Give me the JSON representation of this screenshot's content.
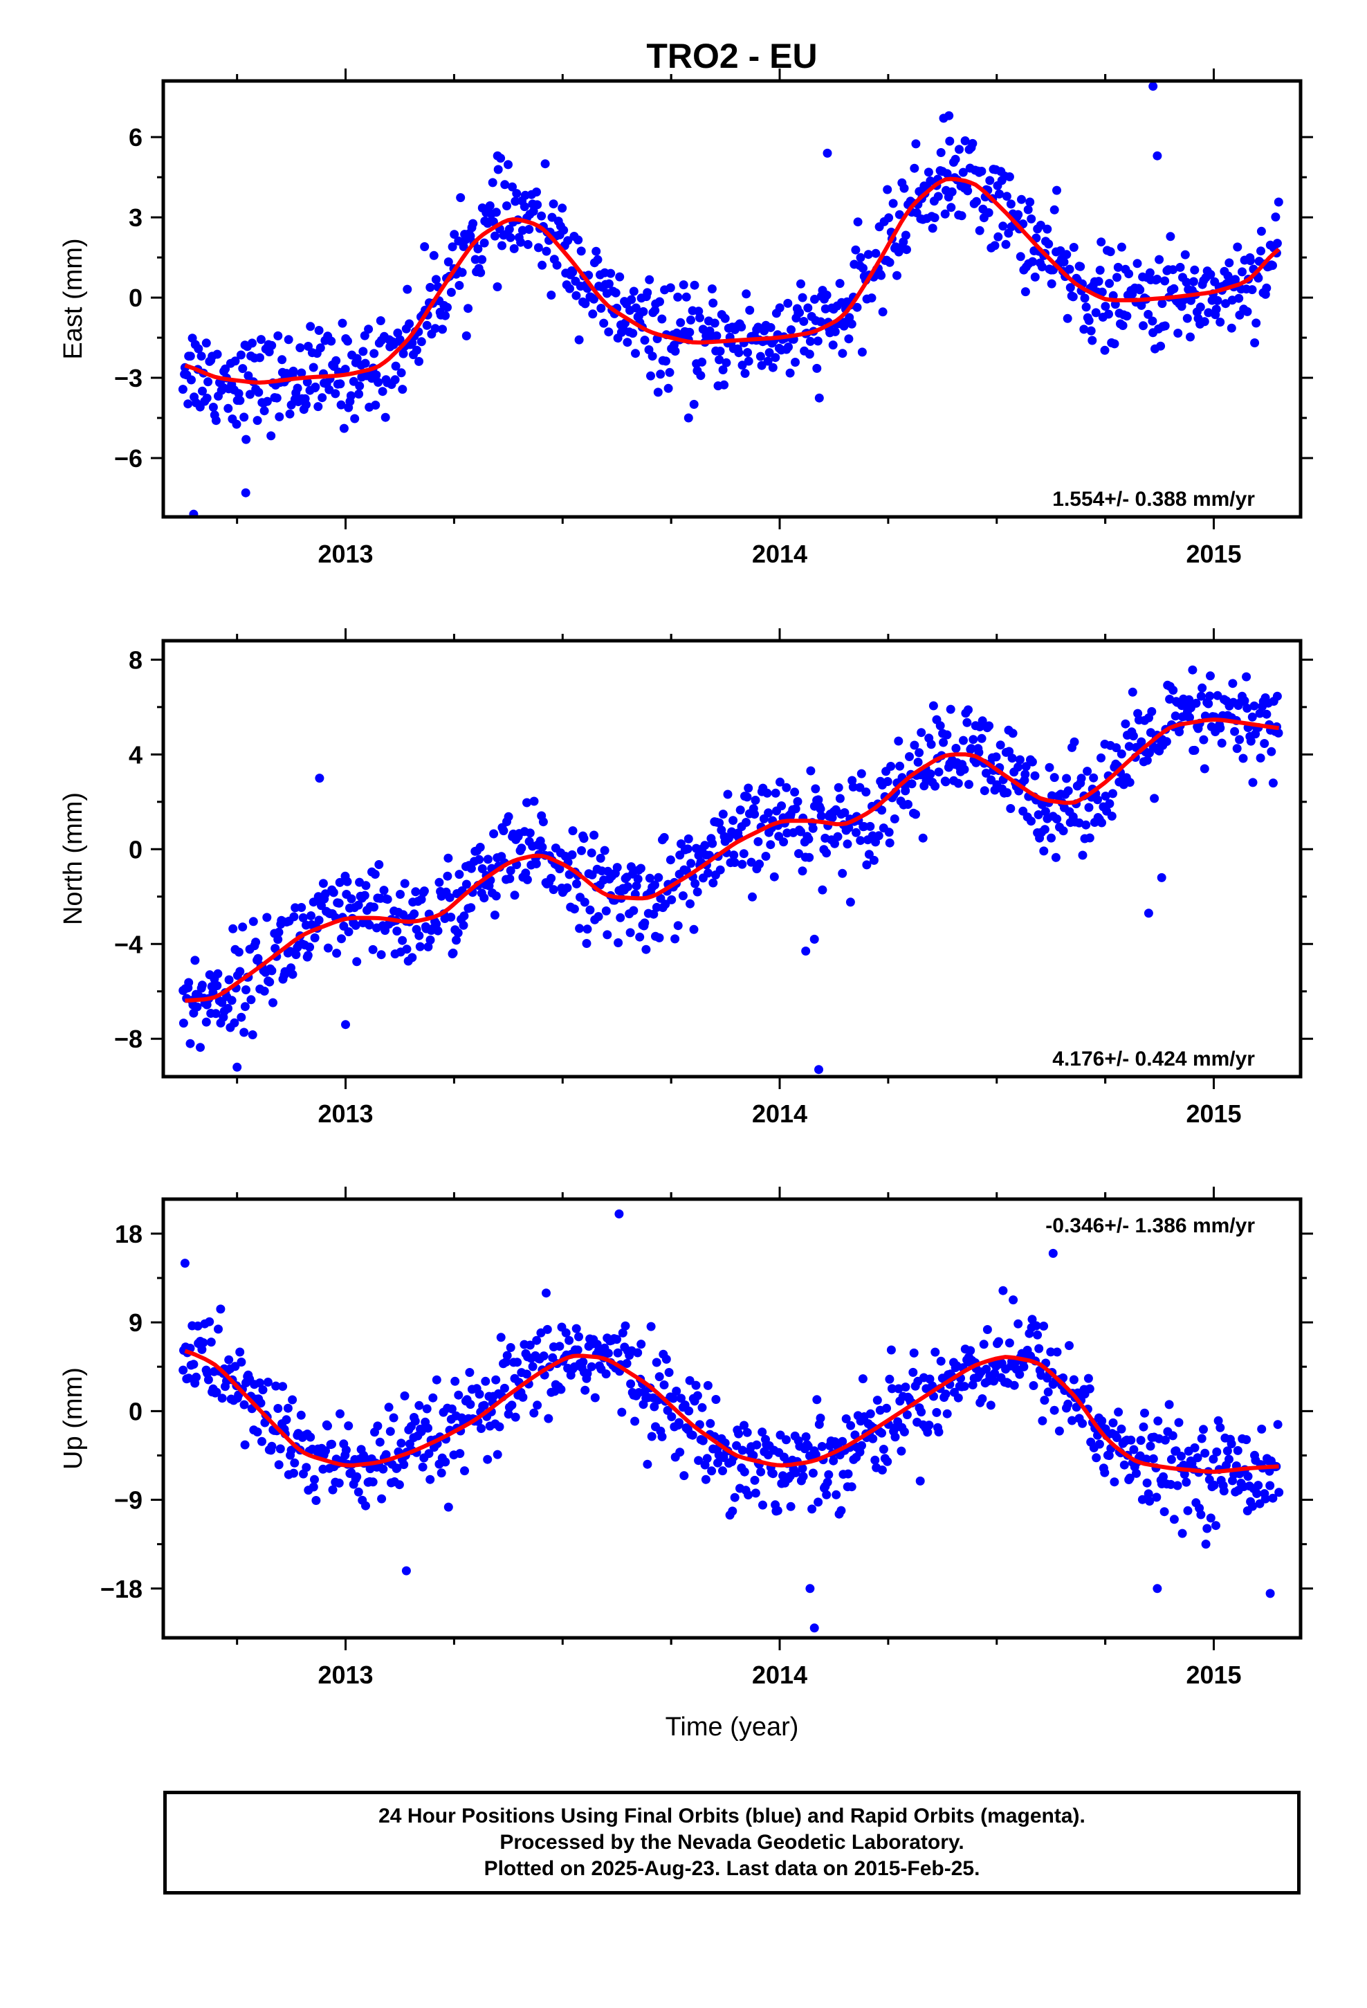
{
  "title": "TRO2 - EU",
  "xlabel": "Time (year)",
  "caption": {
    "line1": "24 Hour Positions Using Final Orbits (blue) and Rapid Orbits (magenta).",
    "line2": "Processed by the Nevada Geodetic Laboratory.",
    "line3": "Plotted on 2025-Aug-23. Last data on 2015-Feb-25."
  },
  "colors": {
    "points": "#0000ff",
    "fit": "#ff0000",
    "frame": "#000000"
  },
  "chart_data": [
    {
      "type": "scatter",
      "component": "east",
      "ylabel": "East (mm)",
      "xlim": [
        2012.58,
        2015.2
      ],
      "ylim": [
        -8.2,
        8.1
      ],
      "yticks": [
        -6,
        -3,
        0,
        3,
        6
      ],
      "yticklabels": [
        "−6",
        "−3",
        "0",
        "3",
        "6"
      ],
      "xticks": [
        2013,
        2014,
        2015
      ],
      "rate": "1.554+/- 0.388 mm/yr",
      "rate_position": "bottom-right",
      "trend": {
        "x": [
          2012.63,
          2012.7,
          2012.8,
          2012.9,
          2013.0,
          2013.08,
          2013.15,
          2013.22,
          2013.3,
          2013.38,
          2013.45,
          2013.52,
          2013.6,
          2013.7,
          2013.8,
          2013.9,
          2014.0,
          2014.08,
          2014.15,
          2014.22,
          2014.3,
          2014.38,
          2014.45,
          2014.52,
          2014.6,
          2014.68,
          2014.75,
          2014.82,
          2014.9,
          2015.0,
          2015.08,
          2015.15
        ],
        "y": [
          -2.5,
          -3.0,
          -3.2,
          -3.0,
          -2.9,
          -2.6,
          -1.5,
          0.3,
          2.2,
          3.0,
          2.7,
          1.4,
          -0.3,
          -1.3,
          -1.7,
          -1.6,
          -1.5,
          -1.3,
          -0.7,
          1.1,
          3.4,
          4.5,
          4.3,
          3.2,
          1.8,
          0.5,
          -0.1,
          -0.1,
          0.0,
          0.2,
          0.6,
          1.9
        ]
      },
      "points": {
        "count": 900,
        "outliers": [
          [
            2012.65,
            -8.1
          ],
          [
            2012.77,
            -7.3
          ],
          [
            2013.35,
            5.3
          ],
          [
            2014.11,
            5.4
          ],
          [
            2014.39,
            6.8
          ],
          [
            2014.86,
            7.9
          ],
          [
            2014.87,
            5.3
          ],
          [
            2013.79,
            -4.5
          ]
        ]
      }
    },
    {
      "type": "scatter",
      "component": "north",
      "ylabel": "North (mm)",
      "xlim": [
        2012.58,
        2015.2
      ],
      "ylim": [
        -9.6,
        8.8
      ],
      "yticks": [
        -8,
        -4,
        0,
        4,
        8
      ],
      "yticklabels": [
        "−8",
        "−4",
        "0",
        "4",
        "8"
      ],
      "xticks": [
        2013,
        2014,
        2015
      ],
      "rate": "4.176+/- 0.424 mm/yr",
      "rate_position": "bottom-right",
      "trend": {
        "x": [
          2012.63,
          2012.7,
          2012.8,
          2012.9,
          2013.0,
          2013.08,
          2013.15,
          2013.22,
          2013.3,
          2013.38,
          2013.45,
          2013.52,
          2013.6,
          2013.7,
          2013.8,
          2013.9,
          2014.0,
          2014.08,
          2014.15,
          2014.22,
          2014.3,
          2014.38,
          2014.45,
          2014.52,
          2014.6,
          2014.68,
          2014.75,
          2014.82,
          2014.9,
          2015.0,
          2015.08,
          2015.15
        ],
        "y": [
          -6.4,
          -6.3,
          -5.0,
          -3.6,
          -2.9,
          -2.9,
          -3.1,
          -2.8,
          -1.5,
          -0.5,
          -0.2,
          -0.8,
          -2.0,
          -2.1,
          -1.0,
          0.3,
          1.2,
          1.2,
          1.0,
          1.7,
          3.1,
          4.0,
          4.0,
          3.1,
          2.1,
          1.9,
          2.8,
          4.0,
          5.2,
          5.5,
          5.3,
          5.1
        ]
      },
      "points": {
        "count": 900,
        "outliers": [
          [
            2012.75,
            -9.2
          ],
          [
            2013.0,
            -7.4
          ],
          [
            2012.94,
            3.0
          ],
          [
            2014.09,
            -9.3
          ],
          [
            2014.06,
            -4.3
          ],
          [
            2014.08,
            -3.8
          ],
          [
            2014.85,
            -2.7
          ],
          [
            2014.88,
            -1.2
          ]
        ]
      }
    },
    {
      "type": "scatter",
      "component": "up",
      "ylabel": "Up (mm)",
      "xlim": [
        2012.58,
        2015.2
      ],
      "ylim": [
        -23.0,
        21.5
      ],
      "yticks": [
        -18,
        -9,
        0,
        9,
        18
      ],
      "yticklabels": [
        "−18",
        "−9",
        "0",
        "9",
        "18"
      ],
      "xticks": [
        2013,
        2014,
        2015
      ],
      "rate": "-0.346+/- 1.386 mm/yr",
      "rate_position": "top-right",
      "trend": {
        "x": [
          2012.63,
          2012.7,
          2012.8,
          2012.9,
          2013.0,
          2013.08,
          2013.15,
          2013.22,
          2013.3,
          2013.38,
          2013.45,
          2013.52,
          2013.6,
          2013.7,
          2013.8,
          2013.9,
          2014.0,
          2014.08,
          2014.15,
          2014.22,
          2014.3,
          2014.38,
          2014.45,
          2014.52,
          2014.6,
          2014.68,
          2014.75,
          2014.82,
          2014.9,
          2015.0,
          2015.08,
          2015.15
        ],
        "y": [
          6.2,
          4.8,
          0.2,
          -4.3,
          -5.6,
          -5.2,
          -4.2,
          -2.8,
          -0.9,
          1.8,
          4.0,
          5.7,
          5.4,
          2.6,
          -1.5,
          -4.6,
          -5.6,
          -5.1,
          -3.7,
          -1.8,
          0.5,
          2.8,
          4.7,
          5.6,
          4.9,
          1.6,
          -2.8,
          -5.2,
          -5.8,
          -6.2,
          -5.8,
          -5.6
        ]
      },
      "points": {
        "count": 900,
        "outliers": [
          [
            2013.63,
            20.0
          ],
          [
            2014.08,
            -22.0
          ],
          [
            2014.07,
            -18.0
          ],
          [
            2014.63,
            16.0
          ],
          [
            2012.63,
            15.0
          ],
          [
            2013.14,
            -16.2
          ],
          [
            2015.13,
            -18.5
          ],
          [
            2014.87,
            -18.0
          ]
        ]
      }
    }
  ]
}
